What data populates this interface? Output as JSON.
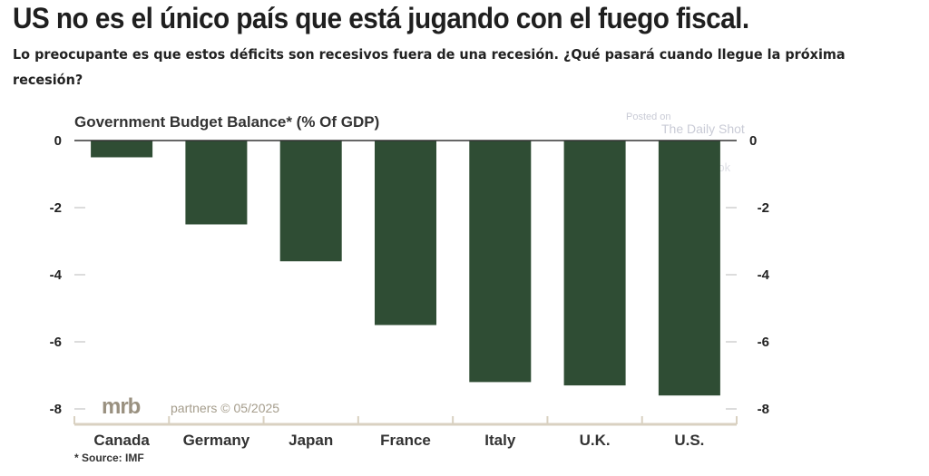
{
  "header": {
    "title": "US no es el único país que está jugando con el fuego fiscal.",
    "subtitle": "Lo preocupante es que estos déficits son recesivos fuera de una recesión. ¿Qué pasará cuando llegue la próxima recesión?"
  },
  "watermark": {
    "line1": "Posted on",
    "line2": "The Daily Shot",
    "line3": "@SoberLook"
  },
  "branding": {
    "logo": "mrb",
    "text": "partners © 05/2025"
  },
  "footnote": "* Source: IMF",
  "colors": {
    "bar": "#2f4d34",
    "axis": "#d9d1c1",
    "zero_line": "#333333"
  },
  "chart_data": {
    "type": "bar",
    "title": "Government Budget Balance* (% Of GDP)",
    "categories": [
      "Canada",
      "Germany",
      "Japan",
      "France",
      "Italy",
      "U.K.",
      "U.S."
    ],
    "values": [
      -0.5,
      -2.5,
      -3.6,
      -5.5,
      -7.2,
      -7.3,
      -7.6
    ],
    "ylim": [
      -8,
      0
    ],
    "yticks": [
      0,
      -2,
      -4,
      -6,
      -8
    ],
    "ytick_labels": [
      "0",
      "-2",
      "-4",
      "-6",
      "-8"
    ],
    "xlabel": "",
    "ylabel": "",
    "dual_y_axis": true,
    "grid": false
  }
}
